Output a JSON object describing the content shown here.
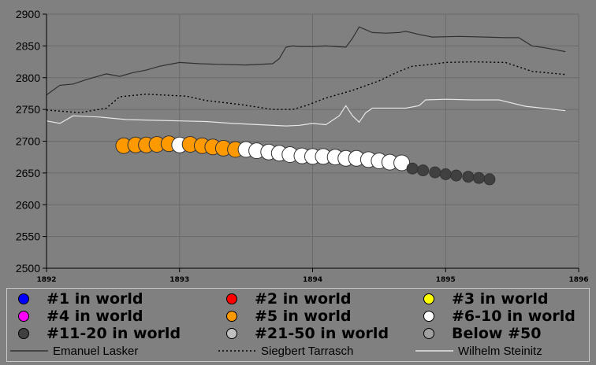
{
  "chart_data": {
    "type": "line",
    "xlim": [
      1892,
      1896
    ],
    "ylim": [
      2500,
      2900
    ],
    "x_ticks": [
      "1892",
      "1893",
      "1894",
      "1895",
      "1896"
    ],
    "y_ticks": [
      "2500",
      "2550",
      "2600",
      "2650",
      "2700",
      "2750",
      "2800",
      "2850",
      "2900"
    ],
    "grid": true,
    "series": [
      {
        "name": "Emanuel Lasker",
        "style": "solid",
        "color": "#303030",
        "x": [
          1892.0,
          1892.1,
          1892.2,
          1892.3,
          1892.45,
          1892.55,
          1892.65,
          1892.75,
          1892.85,
          1892.95,
          1893.0,
          1893.15,
          1893.3,
          1893.5,
          1893.7,
          1893.75,
          1893.8,
          1893.85,
          1893.9,
          1894.0,
          1894.1,
          1894.25,
          1894.3,
          1894.35,
          1894.45,
          1894.55,
          1894.65,
          1894.7,
          1894.8,
          1894.9,
          1895.1,
          1895.3,
          1895.45,
          1895.55,
          1895.65,
          1895.75,
          1895.9
        ],
        "y": [
          2773,
          2788,
          2790,
          2797,
          2806,
          2802,
          2808,
          2812,
          2818,
          2822,
          2824,
          2822,
          2821,
          2820,
          2822,
          2830,
          2848,
          2850,
          2849,
          2849,
          2850,
          2848,
          2862,
          2880,
          2871,
          2870,
          2871,
          2873,
          2868,
          2864,
          2865,
          2864,
          2863,
          2863,
          2850,
          2847,
          2841
        ]
      },
      {
        "name": "Siegbert Tarrasch",
        "style": "dotted",
        "color": "#000000",
        "x": [
          1892.0,
          1892.25,
          1892.45,
          1892.55,
          1892.75,
          1892.95,
          1893.05,
          1893.2,
          1893.45,
          1893.7,
          1893.85,
          1893.95,
          1894.1,
          1894.3,
          1894.5,
          1894.65,
          1894.75,
          1894.85,
          1895.0,
          1895.2,
          1895.45,
          1895.65,
          1895.9
        ],
        "y": [
          2749,
          2745,
          2752,
          2770,
          2774,
          2772,
          2771,
          2764,
          2758,
          2750,
          2750,
          2756,
          2768,
          2780,
          2795,
          2810,
          2818,
          2820,
          2824,
          2825,
          2824,
          2810,
          2805
        ]
      },
      {
        "name": "Wilhelm Steinitz",
        "style": "solid",
        "color": "#e6e6e6",
        "x": [
          1892.0,
          1892.1,
          1892.2,
          1892.4,
          1892.6,
          1892.8,
          1893.0,
          1893.2,
          1893.4,
          1893.6,
          1893.8,
          1893.9,
          1894.0,
          1894.1,
          1894.2,
          1894.25,
          1894.3,
          1894.35,
          1894.4,
          1894.45,
          1894.55,
          1894.7,
          1894.8,
          1894.85,
          1895.0,
          1895.2,
          1895.4,
          1895.6,
          1895.9
        ],
        "y": [
          2732,
          2728,
          2740,
          2738,
          2734,
          2733,
          2732,
          2731,
          2728,
          2726,
          2724,
          2725,
          2728,
          2726,
          2740,
          2756,
          2740,
          2730,
          2745,
          2752,
          2752,
          2752,
          2756,
          2765,
          2766,
          2765,
          2765,
          2755,
          2748
        ]
      }
    ],
    "rank_points": [
      {
        "x": 1892.58,
        "y": 2693,
        "rank": "#5 in world"
      },
      {
        "x": 1892.67,
        "y": 2694,
        "rank": "#5 in world"
      },
      {
        "x": 1892.75,
        "y": 2694,
        "rank": "#5 in world"
      },
      {
        "x": 1892.83,
        "y": 2695,
        "rank": "#5 in world"
      },
      {
        "x": 1892.92,
        "y": 2696,
        "rank": "#5 in world"
      },
      {
        "x": 1893.0,
        "y": 2694,
        "rank": "#6-10 in world"
      },
      {
        "x": 1893.08,
        "y": 2695,
        "rank": "#5 in world"
      },
      {
        "x": 1893.17,
        "y": 2693,
        "rank": "#5 in world"
      },
      {
        "x": 1893.25,
        "y": 2691,
        "rank": "#5 in world"
      },
      {
        "x": 1893.33,
        "y": 2689,
        "rank": "#5 in world"
      },
      {
        "x": 1893.42,
        "y": 2687,
        "rank": "#5 in world"
      },
      {
        "x": 1893.5,
        "y": 2687,
        "rank": "#6-10 in world"
      },
      {
        "x": 1893.58,
        "y": 2685,
        "rank": "#6-10 in world"
      },
      {
        "x": 1893.67,
        "y": 2683,
        "rank": "#6-10 in world"
      },
      {
        "x": 1893.75,
        "y": 2681,
        "rank": "#6-10 in world"
      },
      {
        "x": 1893.83,
        "y": 2679,
        "rank": "#6-10 in world"
      },
      {
        "x": 1893.92,
        "y": 2677,
        "rank": "#6-10 in world"
      },
      {
        "x": 1894.0,
        "y": 2676,
        "rank": "#6-10 in world"
      },
      {
        "x": 1894.08,
        "y": 2676,
        "rank": "#6-10 in world"
      },
      {
        "x": 1894.17,
        "y": 2675,
        "rank": "#6-10 in world"
      },
      {
        "x": 1894.25,
        "y": 2673,
        "rank": "#6-10 in world"
      },
      {
        "x": 1894.33,
        "y": 2673,
        "rank": "#6-10 in world"
      },
      {
        "x": 1894.42,
        "y": 2671,
        "rank": "#6-10 in world"
      },
      {
        "x": 1894.5,
        "y": 2669,
        "rank": "#6-10 in world"
      },
      {
        "x": 1894.58,
        "y": 2667,
        "rank": "#6-10 in world"
      },
      {
        "x": 1894.67,
        "y": 2666,
        "rank": "#6-10 in world"
      },
      {
        "x": 1894.75,
        "y": 2657,
        "rank": "#11-20 in world"
      },
      {
        "x": 1894.83,
        "y": 2654,
        "rank": "#11-20 in world"
      },
      {
        "x": 1894.92,
        "y": 2651,
        "rank": "#11-20 in world"
      },
      {
        "x": 1895.0,
        "y": 2648,
        "rank": "#11-20 in world"
      },
      {
        "x": 1895.08,
        "y": 2646,
        "rank": "#11-20 in world"
      },
      {
        "x": 1895.17,
        "y": 2644,
        "rank": "#11-20 in world"
      },
      {
        "x": 1895.25,
        "y": 2642,
        "rank": "#11-20 in world"
      },
      {
        "x": 1895.33,
        "y": 2640,
        "rank": "#11-20 in world"
      }
    ]
  },
  "legend": {
    "ranks": [
      {
        "label": "#1 in world",
        "color": "#0000ff"
      },
      {
        "label": "#2 in world",
        "color": "#ff0000"
      },
      {
        "label": "#3 in world",
        "color": "#ffff00"
      },
      {
        "label": "#4 in world",
        "color": "#ff00ff"
      },
      {
        "label": "#5 in world",
        "color": "#ff9900"
      },
      {
        "label": "#6-10 in world",
        "color": "#ffffff"
      },
      {
        "label": "#11-20 in world",
        "color": "#404040"
      },
      {
        "label": "#21-50 in world",
        "color": "#c0c0c0"
      },
      {
        "label": "Below #50",
        "color": "#a0a0a0"
      }
    ],
    "players": [
      {
        "label": "Emanuel Lasker",
        "color": "#303030",
        "style": "solid"
      },
      {
        "label": "Siegbert Tarrasch",
        "color": "#000000",
        "style": "dotted"
      },
      {
        "label": "Wilhelm Steinitz",
        "color": "#e6e6e6",
        "style": "solid"
      }
    ]
  }
}
